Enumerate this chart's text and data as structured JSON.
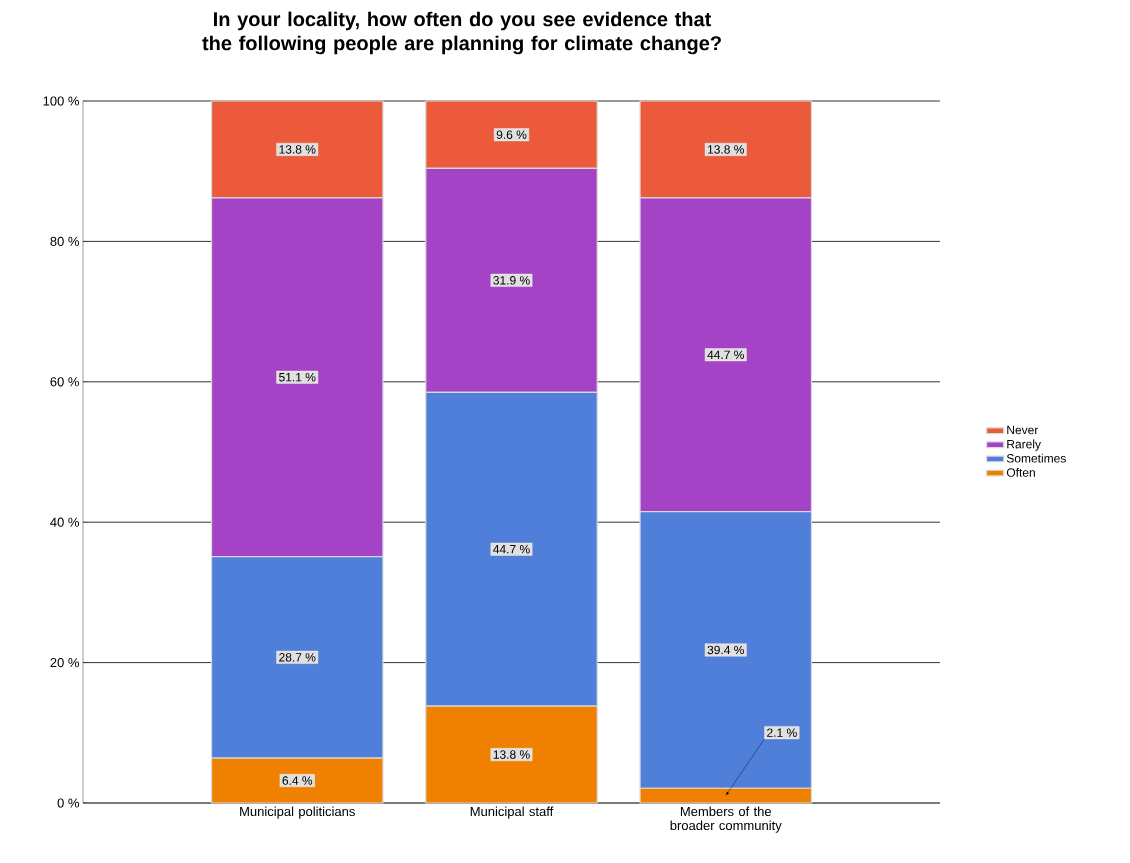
{
  "chart_data": {
    "type": "bar",
    "stacked": true,
    "title": "In your locality, how often do you see evidence that the following people are planning for climate change?",
    "categories": [
      "Municipal politicians",
      "Municipal staff",
      "Members of the broader community"
    ],
    "series": [
      {
        "name": "Often",
        "color": "#f08000",
        "values": [
          6.4,
          13.8,
          2.1
        ],
        "value_labels": [
          "6.4 %",
          "13.8 %",
          "2.1 %"
        ]
      },
      {
        "name": "Sometimes",
        "color": "#4f7fd8",
        "values": [
          28.7,
          44.7,
          39.4
        ],
        "value_labels": [
          "28.7 %",
          "44.7 %",
          "39.4 %"
        ]
      },
      {
        "name": "Rarely",
        "color": "#a443c6",
        "values": [
          51.1,
          31.9,
          44.7
        ],
        "value_labels": [
          "51.1 %",
          "31.9 %",
          "44.7 %"
        ]
      },
      {
        "name": "Never",
        "color": "#ec5a3c",
        "values": [
          13.8,
          9.6,
          13.8
        ],
        "value_labels": [
          "13.8 %",
          "9.6 %",
          "13.8 %"
        ]
      }
    ],
    "ylim": [
      0,
      100
    ],
    "yticks": [
      {
        "value": 0,
        "label": "0 %"
      },
      {
        "value": 20,
        "label": "20 %"
      },
      {
        "value": 40,
        "label": "40 %"
      },
      {
        "value": 60,
        "label": "60 %"
      },
      {
        "value": 80,
        "label": "80 %"
      },
      {
        "value": 100,
        "label": "100 %"
      }
    ],
    "grid": "y",
    "legend": "right"
  }
}
